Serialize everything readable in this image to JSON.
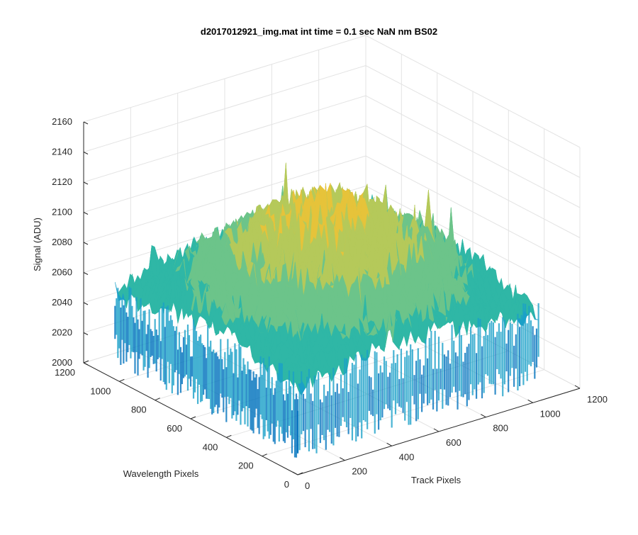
{
  "chart_data": {
    "type": "surface",
    "title": "d2017012921_img.mat int time = 0.1 sec  NaN nm BS02",
    "xlabel": "Track Pixels",
    "ylabel": "Wavelength Pixels",
    "zlabel": "Signal (ADU)",
    "xlim": [
      0,
      1200
    ],
    "ylim": [
      0,
      1200
    ],
    "zlim": [
      2000,
      2160
    ],
    "xticks": [
      "0",
      "200",
      "400",
      "600",
      "800",
      "1000",
      "1200"
    ],
    "yticks": [
      "0",
      "200",
      "400",
      "600",
      "800",
      "1000",
      "1200"
    ],
    "zticks": [
      "2000",
      "2020",
      "2040",
      "2060",
      "2080",
      "2100",
      "2120",
      "2140",
      "2160"
    ],
    "surface": {
      "x_extent": [
        0,
        1024
      ],
      "y_extent": [
        0,
        1024
      ],
      "baseline_signal": 2052,
      "center_signal": 2115,
      "noise_range": [
        2020,
        2150
      ]
    },
    "colormap": [
      "#0072BD",
      "#1AA0C8",
      "#2FB7A6",
      "#6CC48A",
      "#B5C95A",
      "#E6C33A",
      "#F2D23C"
    ],
    "grid": true
  }
}
